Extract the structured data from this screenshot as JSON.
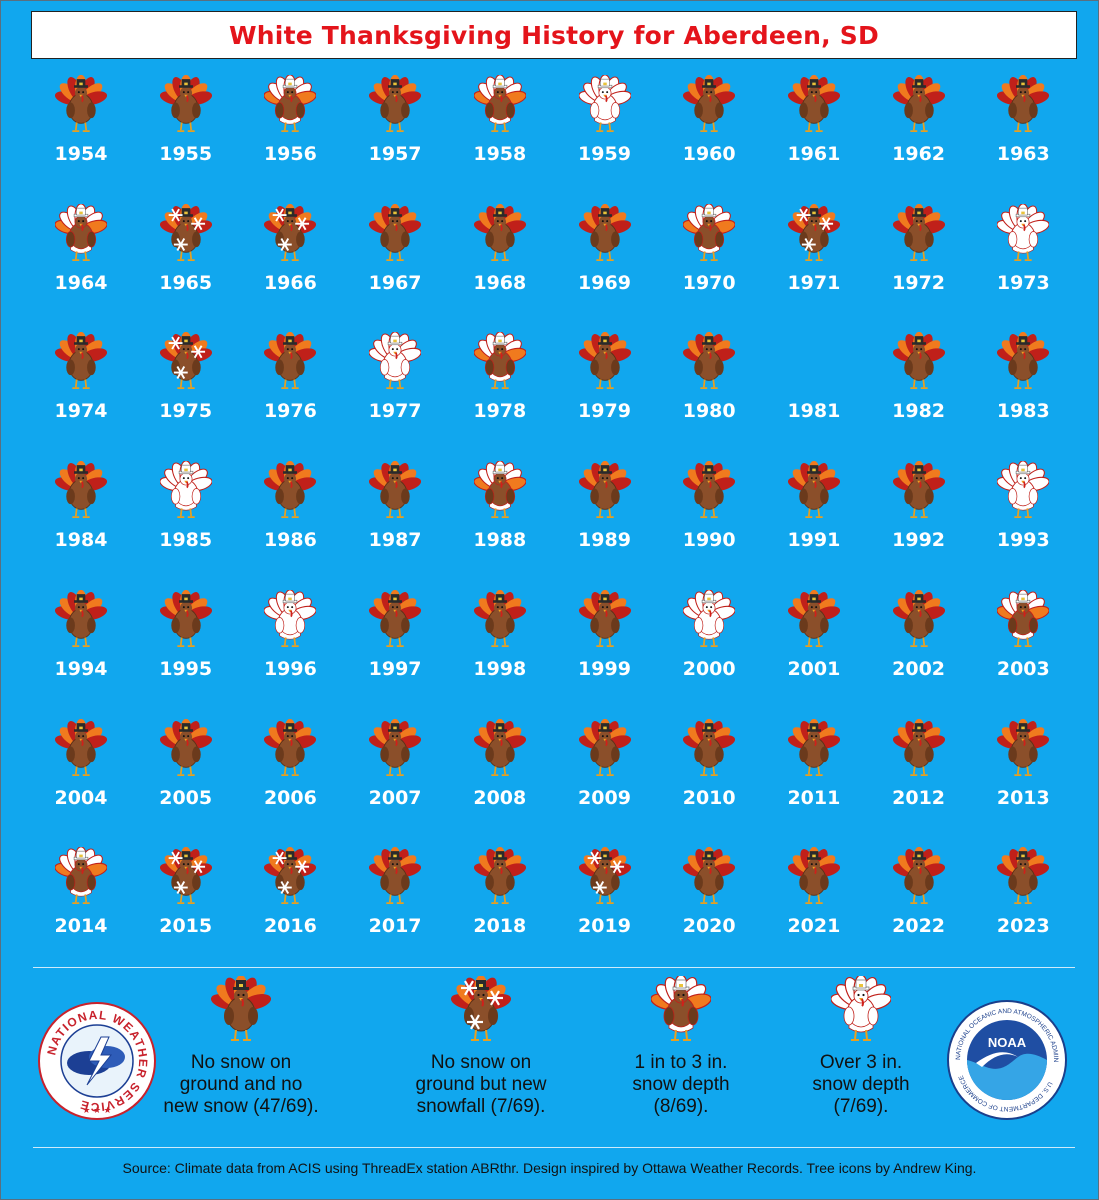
{
  "title": "White Thanksgiving History for Aberdeen, SD",
  "years": [
    {
      "year": "1954",
      "category": "none"
    },
    {
      "year": "1955",
      "category": "none"
    },
    {
      "year": "1956",
      "category": "depth1to3"
    },
    {
      "year": "1957",
      "category": "none"
    },
    {
      "year": "1958",
      "category": "depth1to3"
    },
    {
      "year": "1959",
      "category": "over3"
    },
    {
      "year": "1960",
      "category": "none"
    },
    {
      "year": "1961",
      "category": "none"
    },
    {
      "year": "1962",
      "category": "none"
    },
    {
      "year": "1963",
      "category": "none"
    },
    {
      "year": "1964",
      "category": "depth1to3"
    },
    {
      "year": "1965",
      "category": "newsnow"
    },
    {
      "year": "1966",
      "category": "newsnow"
    },
    {
      "year": "1967",
      "category": "none"
    },
    {
      "year": "1968",
      "category": "none"
    },
    {
      "year": "1969",
      "category": "none"
    },
    {
      "year": "1970",
      "category": "depth1to3"
    },
    {
      "year": "1971",
      "category": "newsnow"
    },
    {
      "year": "1972",
      "category": "none"
    },
    {
      "year": "1973",
      "category": "over3"
    },
    {
      "year": "1974",
      "category": "none"
    },
    {
      "year": "1975",
      "category": "newsnow"
    },
    {
      "year": "1976",
      "category": "none"
    },
    {
      "year": "1977",
      "category": "over3"
    },
    {
      "year": "1978",
      "category": "depth1to3"
    },
    {
      "year": "1979",
      "category": "none"
    },
    {
      "year": "1980",
      "category": "none"
    },
    {
      "year": "1981",
      "category": "missing"
    },
    {
      "year": "1982",
      "category": "none"
    },
    {
      "year": "1983",
      "category": "none"
    },
    {
      "year": "1984",
      "category": "none"
    },
    {
      "year": "1985",
      "category": "over3"
    },
    {
      "year": "1986",
      "category": "none"
    },
    {
      "year": "1987",
      "category": "none"
    },
    {
      "year": "1988",
      "category": "depth1to3"
    },
    {
      "year": "1989",
      "category": "none"
    },
    {
      "year": "1990",
      "category": "none"
    },
    {
      "year": "1991",
      "category": "none"
    },
    {
      "year": "1992",
      "category": "none"
    },
    {
      "year": "1993",
      "category": "over3"
    },
    {
      "year": "1994",
      "category": "none"
    },
    {
      "year": "1995",
      "category": "none"
    },
    {
      "year": "1996",
      "category": "over3"
    },
    {
      "year": "1997",
      "category": "none"
    },
    {
      "year": "1998",
      "category": "none"
    },
    {
      "year": "1999",
      "category": "none"
    },
    {
      "year": "2000",
      "category": "over3"
    },
    {
      "year": "2001",
      "category": "none"
    },
    {
      "year": "2002",
      "category": "none"
    },
    {
      "year": "2003",
      "category": "depth1to3"
    },
    {
      "year": "2004",
      "category": "none"
    },
    {
      "year": "2005",
      "category": "none"
    },
    {
      "year": "2006",
      "category": "none"
    },
    {
      "year": "2007",
      "category": "none"
    },
    {
      "year": "2008",
      "category": "none"
    },
    {
      "year": "2009",
      "category": "none"
    },
    {
      "year": "2010",
      "category": "none"
    },
    {
      "year": "2011",
      "category": "none"
    },
    {
      "year": "2012",
      "category": "none"
    },
    {
      "year": "2013",
      "category": "none"
    },
    {
      "year": "2014",
      "category": "depth1to3"
    },
    {
      "year": "2015",
      "category": "newsnow"
    },
    {
      "year": "2016",
      "category": "newsnow"
    },
    {
      "year": "2017",
      "category": "none"
    },
    {
      "year": "2018",
      "category": "none"
    },
    {
      "year": "2019",
      "category": "newsnow"
    },
    {
      "year": "2020",
      "category": "none"
    },
    {
      "year": "2021",
      "category": "none"
    },
    {
      "year": "2022",
      "category": "none"
    },
    {
      "year": "2023",
      "category": "none"
    }
  ],
  "legend": [
    {
      "category": "none",
      "lines": [
        "No snow on",
        "ground and no",
        "new snow (47/69)."
      ]
    },
    {
      "category": "newsnow",
      "lines": [
        "No snow on",
        "ground but new",
        "snowfall (7/69)."
      ]
    },
    {
      "category": "depth1to3",
      "lines": [
        "1 in to 3 in.",
        "snow depth",
        "(8/69)."
      ]
    },
    {
      "category": "over3",
      "lines": [
        "Over 3 in.",
        "snow depth",
        "(7/69)."
      ]
    }
  ],
  "logos": {
    "nws": "NATIONAL WEATHER SERVICE",
    "noaa": "NOAA",
    "noaa_ring": "NATIONAL OCEANIC AND ATMOSPHERIC ADMINISTRATION",
    "noaa_ring_bottom": "U.S. DEPARTMENT OF COMMERCE"
  },
  "source": "Source: Climate data from ACIS using ThreadEx station ABRthr. Design inspired by Ottawa Weather Records. Tree icons by Andrew King.",
  "colors": {
    "background": "#11a7ee",
    "title": "#e4141b",
    "turkey_body": "#8b4f2a",
    "feather_orange": "#f07a1e",
    "feather_red": "#c0201a",
    "hat": "#2b2b2b",
    "snow": "#ffffff"
  }
}
